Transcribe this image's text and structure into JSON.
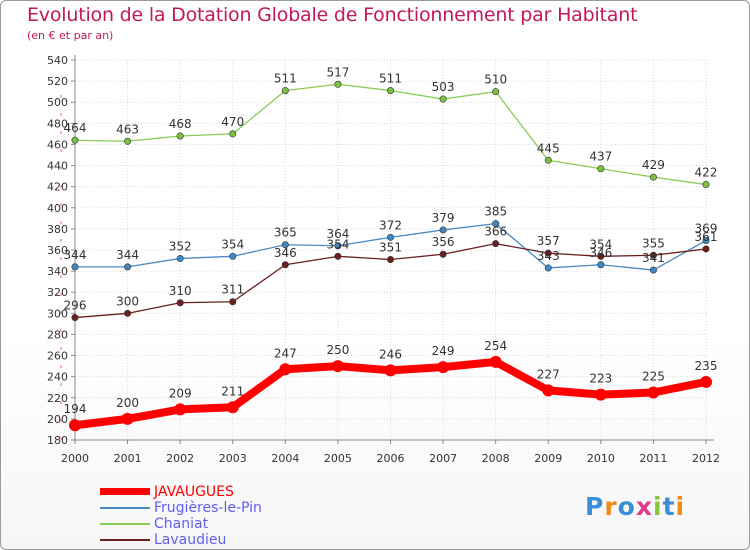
{
  "title": "Evolution de la Dotation Globale de Fonctionnement par Habitant",
  "subtitle": "(en € et par an)",
  "logo_text": "Proxiti",
  "chart_data": {
    "type": "line",
    "x": [
      "2000",
      "2001",
      "2002",
      "2003",
      "2004",
      "2005",
      "2006",
      "2007",
      "2008",
      "2009",
      "2010",
      "2011",
      "2012"
    ],
    "ylim": [
      180,
      540
    ],
    "yticks": [
      180,
      200,
      220,
      240,
      260,
      280,
      300,
      320,
      340,
      360,
      380,
      400,
      420,
      440,
      460,
      480,
      500,
      520,
      540
    ],
    "grid": true,
    "legend_position": "bottom-left",
    "series": [
      {
        "name": "JAVAUGUES",
        "color": "#ff0000",
        "values": [
          194,
          200,
          209,
          211,
          247,
          250,
          246,
          249,
          254,
          227,
          223,
          225,
          235
        ]
      },
      {
        "name": "Frugières-le-Pin",
        "color": "#4a8ac4",
        "values": [
          344,
          344,
          352,
          354,
          365,
          364,
          372,
          379,
          385,
          343,
          346,
          341,
          369
        ]
      },
      {
        "name": "Chaniat",
        "color": "#88cc55",
        "values": [
          464,
          463,
          468,
          470,
          511,
          517,
          511,
          503,
          510,
          445,
          437,
          429,
          422
        ]
      },
      {
        "name": "Lavaudieu",
        "color": "#6b1f1f",
        "values": [
          296,
          300,
          310,
          311,
          346,
          354,
          351,
          356,
          366,
          357,
          354,
          355,
          361
        ]
      }
    ]
  }
}
